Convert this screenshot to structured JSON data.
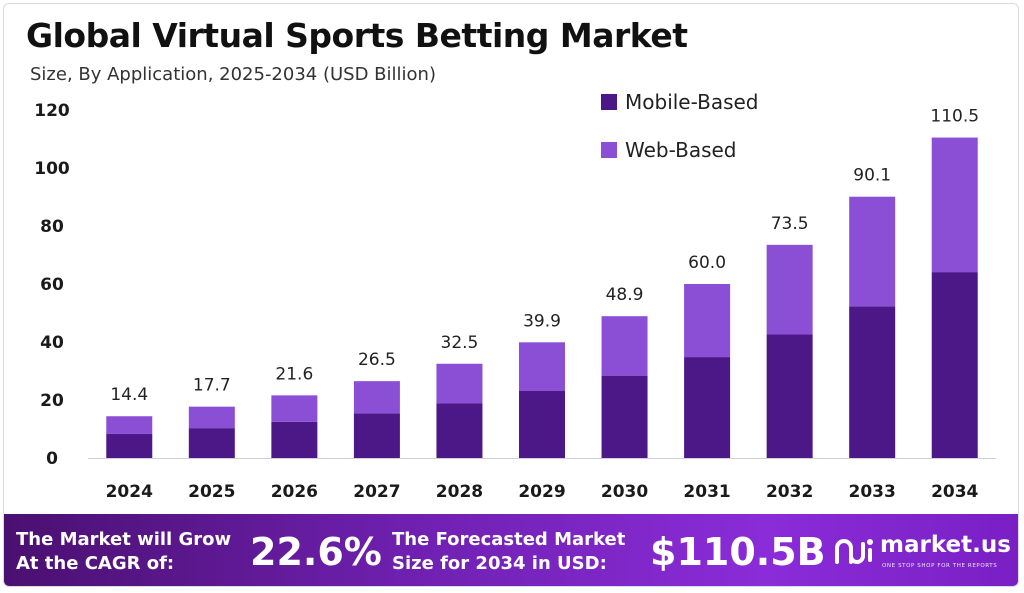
{
  "chart_data": {
    "type": "bar",
    "stacked": true,
    "title": "Global Virtual Sports Betting Market",
    "subtitle": "Size, By Application, 2025-2034 (USD Billion)",
    "categories": [
      "2024",
      "2025",
      "2026",
      "2027",
      "2028",
      "2029",
      "2030",
      "2031",
      "2032",
      "2033",
      "2034"
    ],
    "series": [
      {
        "name": "Mobile-Based",
        "color": "#4c1787",
        "values": [
          8.3,
          10.3,
          12.5,
          15.4,
          18.9,
          23.1,
          28.4,
          34.8,
          42.6,
          52.3,
          64.1
        ]
      },
      {
        "name": "Web-Based",
        "color": "#8b4fd6",
        "values": [
          6.1,
          7.4,
          9.1,
          11.1,
          13.6,
          16.8,
          20.5,
          25.2,
          30.9,
          37.8,
          46.4
        ]
      }
    ],
    "totals": [
      "14.4",
      "17.7",
      "21.6",
      "26.5",
      "32.5",
      "39.9",
      "48.9",
      "60.0",
      "73.5",
      "90.1",
      "110.5"
    ],
    "yticks": [
      "0",
      "20",
      "40",
      "60",
      "80",
      "100",
      "120"
    ],
    "ylim": [
      0,
      120
    ],
    "legend_position": "top-right",
    "grid": false,
    "xlabel": "",
    "ylabel": ""
  },
  "banner": {
    "cagr_label_1": "The Market will Grow",
    "cagr_label_2": "At the CAGR of:",
    "cagr_value": "22.6%",
    "forecast_label_1": "The Forecasted Market",
    "forecast_label_2": "Size for 2034 in USD:",
    "forecast_value": "$110.5B",
    "logo_name": "market.us",
    "logo_tagline": "ONE STOP SHOP FOR THE REPORTS",
    "logo_icon": "market-us-logo-icon"
  },
  "colors": {
    "banner_start": "#4a1070",
    "banner_end": "#8a2cd8"
  }
}
